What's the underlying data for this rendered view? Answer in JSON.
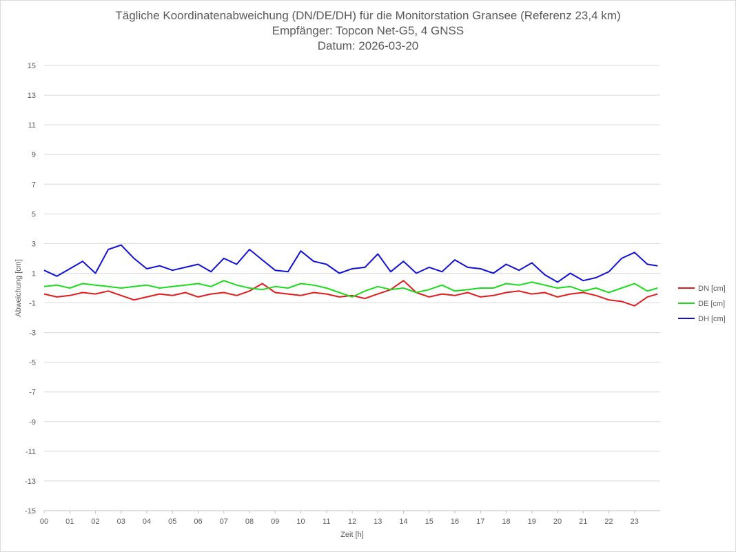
{
  "title": {
    "line1": "Tägliche Koordinatenabweichung (DN/DE/DH) für die Monitorstation Gransee (Referenz 23,4 km)",
    "line2": "Empfänger: Topcon Net-G5, 4 GNSS",
    "line3": "Datum: 2026-03-20"
  },
  "chart_data": {
    "type": "line",
    "title": "Tägliche Koordinatenabweichung (DN/DE/DH) für die Monitorstation Gransee (Referenz 23,4 km)",
    "subtitle": [
      "Empfänger: Topcon Net-G5, 4 GNSS",
      "Datum: 2026-03-20"
    ],
    "xlabel": "Zeit [h]",
    "ylabel": "Abweichung [cm]",
    "xlim": [
      0,
      24
    ],
    "ylim": [
      -15,
      15
    ],
    "x_ticks": [
      "00",
      "01",
      "02",
      "03",
      "04",
      "05",
      "06",
      "07",
      "08",
      "09",
      "10",
      "11",
      "12",
      "13",
      "14",
      "15",
      "16",
      "17",
      "18",
      "19",
      "20",
      "21",
      "22",
      "23"
    ],
    "y_ticks": [
      15,
      13,
      11,
      9,
      7,
      5,
      3,
      1,
      -1,
      -3,
      -5,
      -7,
      -9,
      -11,
      -13,
      -15
    ],
    "grid": true,
    "legend_position": "right",
    "x": [
      0,
      0.5,
      1,
      1.5,
      2,
      2.5,
      3,
      3.5,
      4,
      4.5,
      5,
      5.5,
      6,
      6.5,
      7,
      7.5,
      8,
      8.5,
      9,
      9.5,
      10,
      10.5,
      11,
      11.5,
      12,
      12.5,
      13,
      13.5,
      14,
      14.5,
      15,
      15.5,
      16,
      16.5,
      17,
      17.5,
      18,
      18.5,
      19,
      19.5,
      20,
      20.5,
      21,
      21.5,
      22,
      22.5,
      23,
      23.5,
      23.9
    ],
    "series": [
      {
        "name": "DN [cm]",
        "color": "#e31a1c",
        "values": [
          -0.4,
          -0.6,
          -0.5,
          -0.3,
          -0.4,
          -0.2,
          -0.5,
          -0.8,
          -0.6,
          -0.4,
          -0.5,
          -0.3,
          -0.6,
          -0.4,
          -0.3,
          -0.5,
          -0.2,
          0.3,
          -0.3,
          -0.4,
          -0.5,
          -0.3,
          -0.4,
          -0.6,
          -0.5,
          -0.7,
          -0.4,
          -0.1,
          0.5,
          -0.3,
          -0.6,
          -0.4,
          -0.5,
          -0.3,
          -0.6,
          -0.5,
          -0.3,
          -0.2,
          -0.4,
          -0.3,
          -0.6,
          -0.4,
          -0.3,
          -0.5,
          -0.8,
          -0.9,
          -1.2,
          -0.6,
          -0.4
        ]
      },
      {
        "name": "DE [cm]",
        "color": "#1bdc1b",
        "values": [
          0.1,
          0.2,
          0.0,
          0.3,
          0.2,
          0.1,
          0.0,
          0.1,
          0.2,
          0.0,
          0.1,
          0.2,
          0.3,
          0.1,
          0.5,
          0.2,
          0.0,
          -0.1,
          0.1,
          0.0,
          0.3,
          0.2,
          0.0,
          -0.3,
          -0.6,
          -0.2,
          0.1,
          -0.1,
          0.0,
          -0.3,
          -0.1,
          0.2,
          -0.2,
          -0.1,
          0.0,
          0.0,
          0.3,
          0.2,
          0.4,
          0.2,
          0.0,
          0.1,
          -0.2,
          0.0,
          -0.3,
          0.0,
          0.3,
          -0.2,
          0.0
        ]
      },
      {
        "name": "DH [cm]",
        "color": "#1010d8",
        "values": [
          1.2,
          0.8,
          1.3,
          1.8,
          1.0,
          2.6,
          2.9,
          2.0,
          1.3,
          1.5,
          1.2,
          1.4,
          1.6,
          1.1,
          2.0,
          1.6,
          2.6,
          1.9,
          1.2,
          1.1,
          2.5,
          1.8,
          1.6,
          1.0,
          1.3,
          1.4,
          2.3,
          1.1,
          1.8,
          1.0,
          1.4,
          1.1,
          1.9,
          1.4,
          1.3,
          1.0,
          1.6,
          1.2,
          1.7,
          0.9,
          0.4,
          1.0,
          0.5,
          0.7,
          1.1,
          2.0,
          2.4,
          1.6,
          1.5
        ]
      }
    ]
  }
}
